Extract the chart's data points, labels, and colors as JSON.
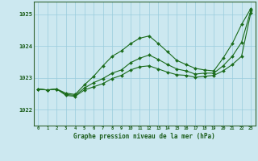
{
  "title": "Graphe pression niveau de la mer (hPa)",
  "xlabel_hours": [
    0,
    1,
    2,
    3,
    4,
    5,
    6,
    7,
    8,
    9,
    10,
    11,
    12,
    13,
    14,
    15,
    16,
    17,
    18,
    19,
    20,
    21,
    22,
    23
  ],
  "ylim": [
    1021.5,
    1025.4
  ],
  "yticks": [
    1022,
    1023,
    1024,
    1025
  ],
  "background_color": "#cce8f0",
  "grid_color": "#99ccdd",
  "line_color": "#1a6b1a",
  "series": [
    [
      1022.65,
      1022.62,
      1022.65,
      1022.52,
      1022.48,
      1022.78,
      1023.05,
      1023.38,
      1023.68,
      1023.85,
      1024.08,
      1024.25,
      1024.32,
      1024.08,
      1023.82,
      1023.55,
      1023.42,
      1023.3,
      1023.25,
      1023.22,
      1023.62,
      1024.08,
      1024.68,
      1025.18
    ],
    [
      1022.65,
      1022.62,
      1022.65,
      1022.45,
      1022.42,
      1022.62,
      1022.72,
      1022.82,
      1022.98,
      1023.08,
      1023.25,
      1023.35,
      1023.38,
      1023.28,
      1023.18,
      1023.1,
      1023.08,
      1023.02,
      1023.05,
      1023.08,
      1023.22,
      1023.42,
      1023.68,
      1025.05
    ],
    [
      1022.65,
      1022.62,
      1022.65,
      1022.48,
      1022.45,
      1022.68,
      1022.85,
      1022.98,
      1023.15,
      1023.25,
      1023.48,
      1023.62,
      1023.72,
      1023.58,
      1023.42,
      1023.28,
      1023.22,
      1023.12,
      1023.15,
      1023.15,
      1023.38,
      1023.68,
      1024.12,
      1025.12
    ]
  ]
}
